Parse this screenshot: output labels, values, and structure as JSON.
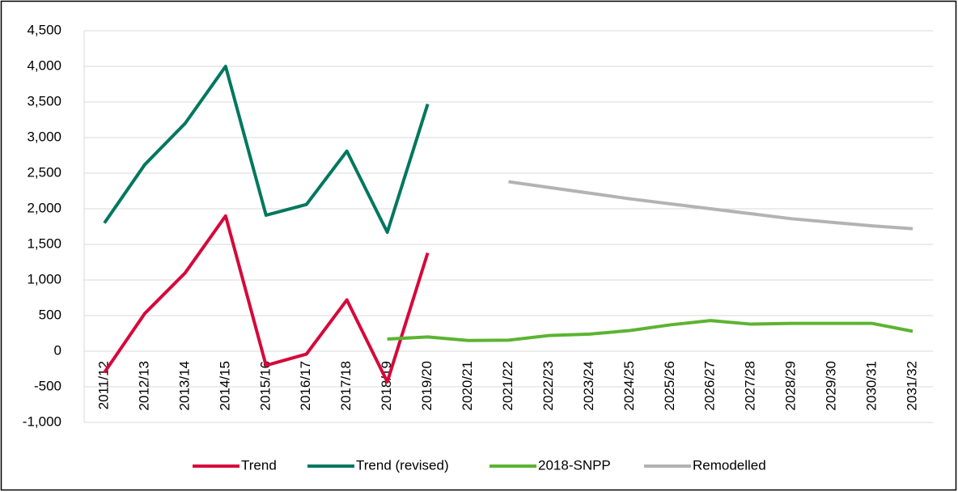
{
  "chart_data": {
    "type": "line",
    "categories": [
      "2011/12",
      "2012/13",
      "2013/14",
      "2014/15",
      "2015/16",
      "2016/17",
      "2017/18",
      "2018/19",
      "2019/20",
      "2020/21",
      "2021/22",
      "2022/23",
      "2023/24",
      "2024/25",
      "2025/26",
      "2026/27",
      "2027/28",
      "2028/29",
      "2029/30",
      "2030/31",
      "2031/32"
    ],
    "series": [
      {
        "name": "Trend",
        "color": "#d6083b",
        "values": [
          -300,
          530,
          1100,
          1900,
          -200,
          -40,
          720,
          -430,
          1380,
          null,
          null,
          null,
          null,
          null,
          null,
          null,
          null,
          null,
          null,
          null,
          null
        ]
      },
      {
        "name": "Trend (revised)",
        "color": "#00775f",
        "values": [
          1800,
          2620,
          3200,
          4000,
          1910,
          2060,
          2810,
          1670,
          3470,
          null,
          null,
          null,
          null,
          null,
          null,
          null,
          null,
          null,
          null,
          null,
          null
        ]
      },
      {
        "name": "2018-SNPP",
        "color": "#5bb431",
        "values": [
          null,
          null,
          null,
          null,
          null,
          null,
          null,
          170,
          200,
          150,
          155,
          220,
          240,
          290,
          370,
          430,
          380,
          390,
          390,
          390,
          280
        ]
      },
      {
        "name": "Remodelled",
        "color": "#b3b3b3",
        "values": [
          null,
          null,
          null,
          null,
          null,
          null,
          null,
          null,
          null,
          null,
          2380,
          2300,
          2220,
          2140,
          2070,
          2000,
          1930,
          1860,
          1810,
          1760,
          1720
        ]
      }
    ],
    "ylim": [
      -1000,
      4500
    ],
    "yticks": [
      {
        "value": -1000,
        "label": "-1,000"
      },
      -500,
      0,
      500,
      {
        "value": 1000,
        "label": "1,000"
      },
      {
        "value": 1500,
        "label": "1,500"
      },
      {
        "value": 2000,
        "label": "2,000"
      },
      {
        "value": 2500,
        "label": "2,500"
      },
      {
        "value": 3000,
        "label": "3,000"
      },
      {
        "value": 3500,
        "label": "3,500"
      },
      {
        "value": 4000,
        "label": "4,000"
      },
      {
        "value": 4500,
        "label": "4,500"
      }
    ],
    "grid": true,
    "legend": "bottom"
  }
}
